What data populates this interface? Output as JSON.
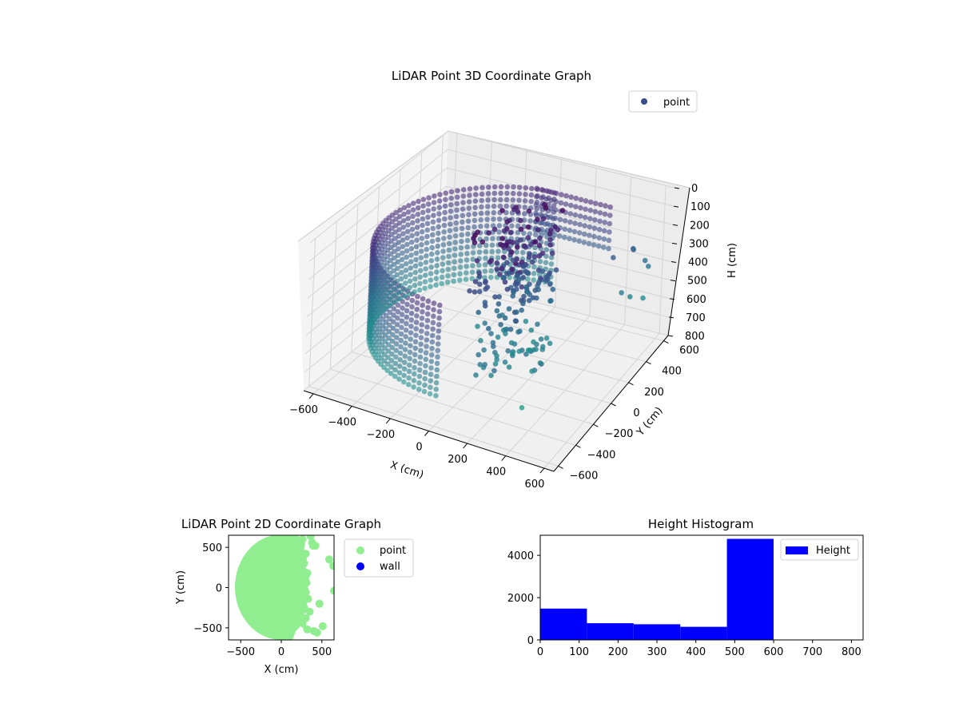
{
  "figure": {
    "background": "#ffffff"
  },
  "chart_data": [
    {
      "type": "scatter",
      "projection": "3d",
      "title": "LiDAR Point 3D Coordinate Graph",
      "xlabel": "X (cm)",
      "ylabel": "Y (cm)",
      "zlabel": "H (cm)",
      "xticks": [
        "−600",
        "−400",
        "−200",
        "0",
        "200",
        "400",
        "600"
      ],
      "yticks": [
        "−600",
        "−400",
        "−200",
        "0",
        "200",
        "400",
        "600"
      ],
      "zticks": [
        "0",
        "100",
        "200",
        "300",
        "400",
        "500",
        "600",
        "700",
        "800"
      ],
      "xlim": [
        -650,
        650
      ],
      "ylim": [
        -650,
        650
      ],
      "zlim": [
        0,
        800
      ],
      "z_axis_inverted": true,
      "grid": true,
      "colormap": "viridis",
      "legend": {
        "placement": "upper-right",
        "entries": [
          {
            "label": "point",
            "color": "#3b4b8b"
          }
        ]
      },
      "series": [
        {
          "name": "point"
        }
      ],
      "description_of_shape": "cylindrical wall of points (radius ≈600 cm, x from −600 to ~250) spanning heights ~150–650 cm, with scattered interior clusters and outliers"
    },
    {
      "type": "scatter",
      "title": "LiDAR Point 2D Coordinate Graph",
      "xlabel": "X (cm)",
      "ylabel": "Y (cm)",
      "xticks": [
        "−500",
        "0",
        "500"
      ],
      "yticks": [
        "500",
        "0",
        "−500"
      ],
      "xlim": [
        -650,
        650
      ],
      "ylim": [
        -650,
        650
      ],
      "legend": {
        "placement": "outside-right",
        "entries": [
          {
            "label": "point",
            "color": "#90ee90"
          },
          {
            "label": "wall",
            "color": "#0000ff"
          }
        ]
      },
      "series": [
        {
          "name": "point",
          "color": "#90ee90"
        },
        {
          "name": "wall",
          "color": "#0000ff"
        }
      ]
    },
    {
      "type": "bar",
      "subtype": "histogram",
      "title": "Height Histogram",
      "xlabel": "",
      "ylabel": "",
      "xticks": [
        "0",
        "100",
        "200",
        "300",
        "400",
        "500",
        "600",
        "700",
        "800"
      ],
      "yticks": [
        "0",
        "2000",
        "4000"
      ],
      "xlim": [
        0,
        830
      ],
      "ylim": [
        0,
        4950
      ],
      "bin_edges": [
        0,
        120,
        240,
        360,
        480,
        600,
        720,
        840
      ],
      "values": [
        1480,
        790,
        740,
        620,
        4780,
        0,
        0
      ],
      "color": "#0000ff",
      "legend": {
        "placement": "upper-right",
        "entries": [
          {
            "label": "Height",
            "color": "#0000ff"
          }
        ]
      },
      "series": [
        {
          "name": "Height",
          "values": [
            1480,
            790,
            740,
            620,
            4780,
            0,
            0
          ]
        }
      ]
    }
  ]
}
